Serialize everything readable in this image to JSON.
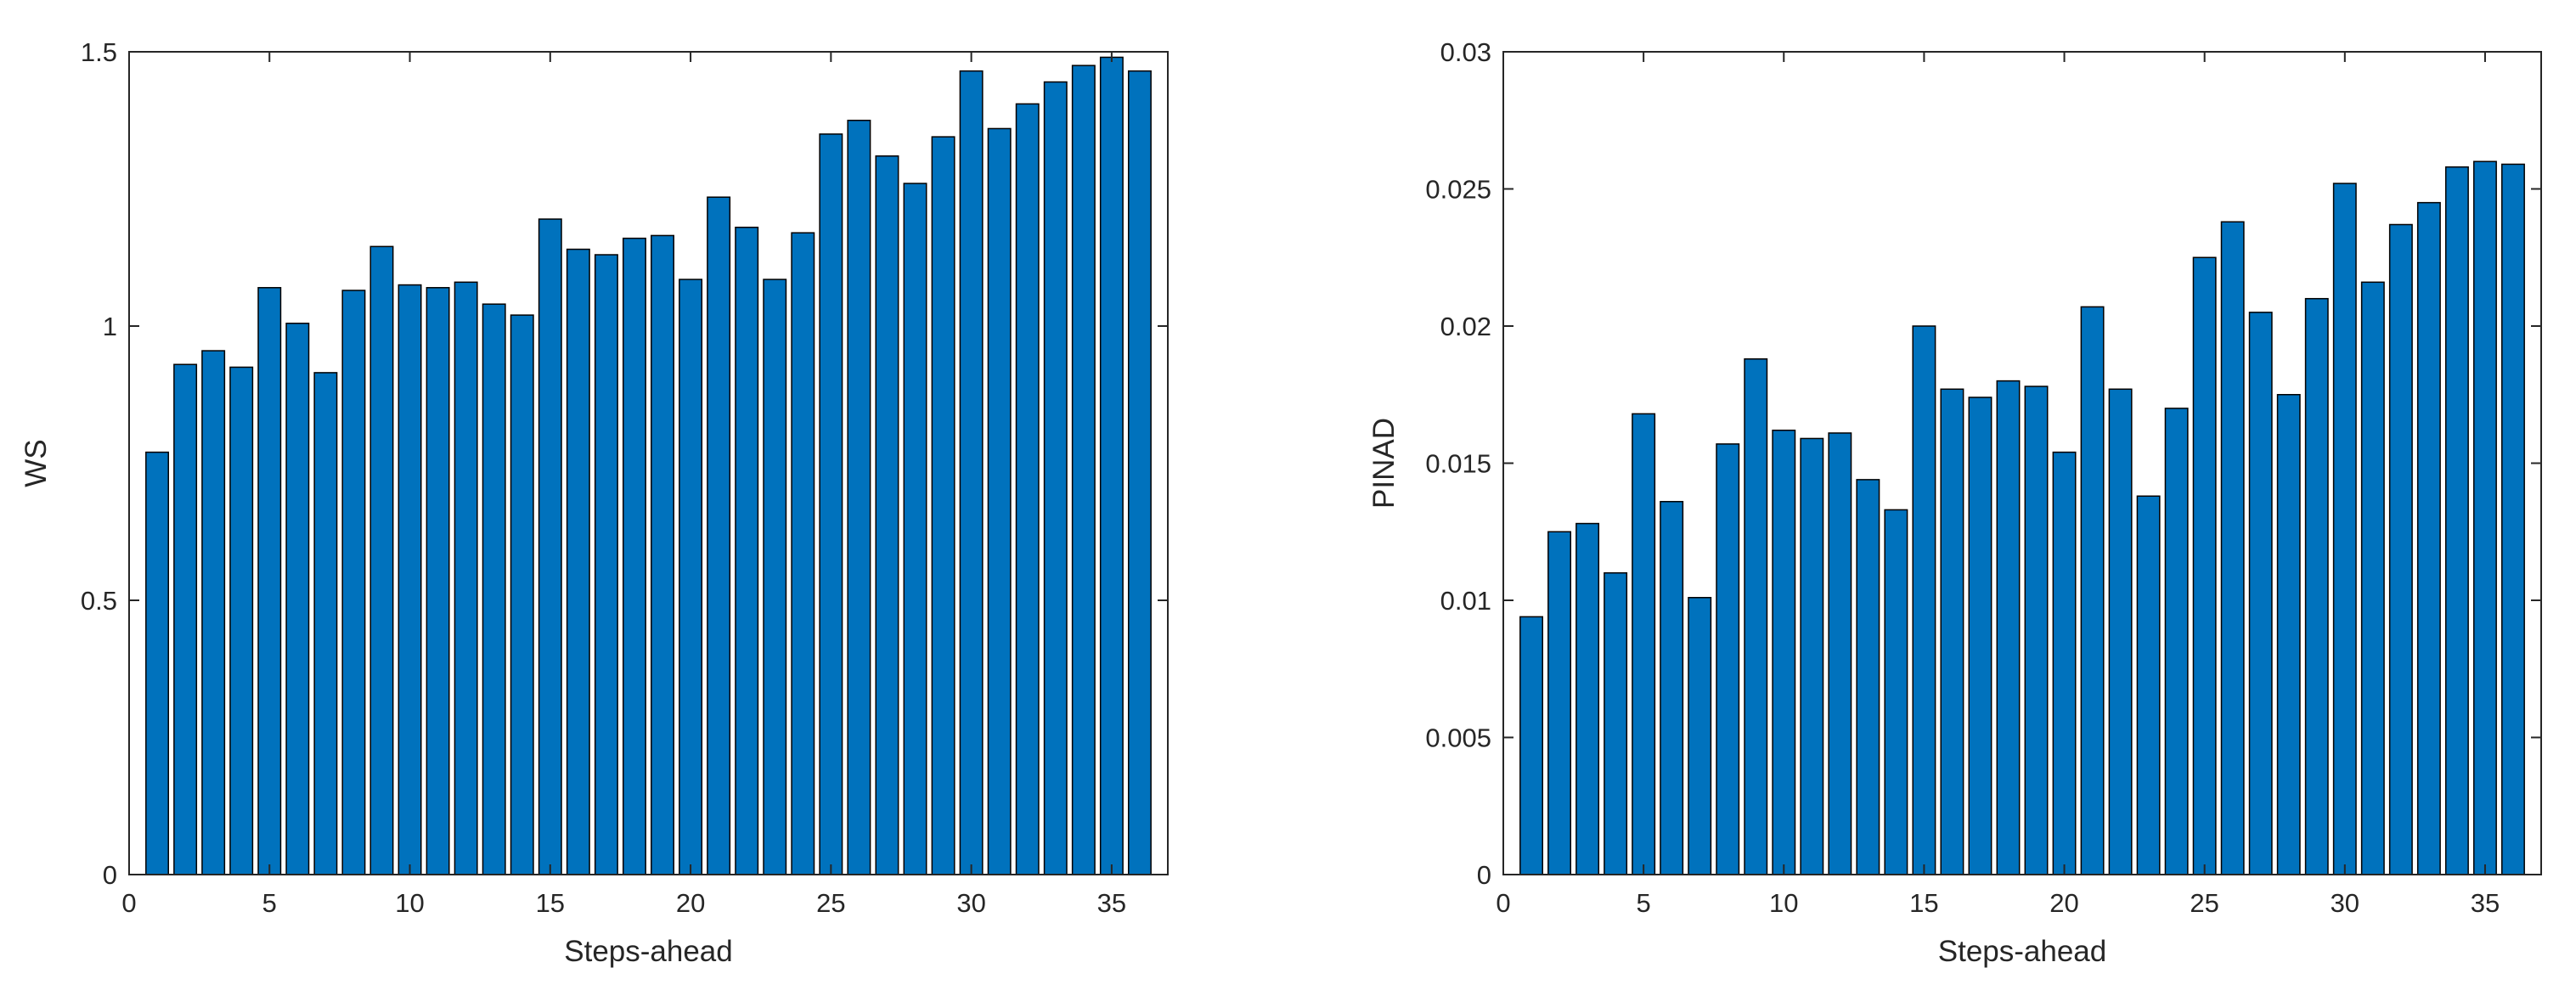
{
  "figure": {
    "bar_color": "#0072BD",
    "edge_color": "#000000",
    "axis_color": "#262626"
  },
  "chart_data": [
    {
      "type": "bar",
      "xlabel": "Steps-ahead",
      "ylabel": "WS",
      "xlim": [
        0,
        37
      ],
      "ylim": [
        0,
        1.5
      ],
      "xticks": [
        0,
        5,
        10,
        15,
        20,
        25,
        30,
        35
      ],
      "yticks": [
        0,
        0.5,
        1,
        1.5
      ],
      "ytick_labels": [
        "0",
        "0.5",
        "1",
        "1.5"
      ],
      "grid": false,
      "categories": [
        1,
        2,
        3,
        4,
        5,
        6,
        7,
        8,
        9,
        10,
        11,
        12,
        13,
        14,
        15,
        16,
        17,
        18,
        19,
        20,
        21,
        22,
        23,
        24,
        25,
        26,
        27,
        28,
        29,
        30,
        31,
        32,
        33,
        34,
        35,
        36
      ],
      "values": [
        0.77,
        0.93,
        0.955,
        0.925,
        1.07,
        1.005,
        0.915,
        1.065,
        1.145,
        1.075,
        1.07,
        1.08,
        1.04,
        1.02,
        1.195,
        1.14,
        1.13,
        1.16,
        1.165,
        1.085,
        1.235,
        1.18,
        1.085,
        1.17,
        1.35,
        1.375,
        1.31,
        1.26,
        1.345,
        1.465,
        1.36,
        1.405,
        1.445,
        1.475,
        1.49,
        1.465
      ]
    },
    {
      "type": "bar",
      "xlabel": "Steps-ahead",
      "ylabel": "PINAD",
      "xlim": [
        0,
        37
      ],
      "ylim": [
        0,
        0.03
      ],
      "xticks": [
        0,
        5,
        10,
        15,
        20,
        25,
        30,
        35
      ],
      "yticks": [
        0,
        0.005,
        0.01,
        0.015,
        0.02,
        0.025,
        0.03
      ],
      "ytick_labels": [
        "0",
        "0.005",
        "0.01",
        "0.015",
        "0.02",
        "0.025",
        "0.03"
      ],
      "grid": false,
      "categories": [
        1,
        2,
        3,
        4,
        5,
        6,
        7,
        8,
        9,
        10,
        11,
        12,
        13,
        14,
        15,
        16,
        17,
        18,
        19,
        20,
        21,
        22,
        23,
        24,
        25,
        26,
        27,
        28,
        29,
        30,
        31,
        32,
        33,
        34,
        35,
        36
      ],
      "values": [
        0.0094,
        0.0125,
        0.0128,
        0.011,
        0.0168,
        0.0136,
        0.0101,
        0.0157,
        0.0188,
        0.0162,
        0.0159,
        0.0161,
        0.0144,
        0.0133,
        0.02,
        0.0177,
        0.0174,
        0.018,
        0.0178,
        0.0154,
        0.0207,
        0.0177,
        0.0138,
        0.017,
        0.0225,
        0.0238,
        0.0205,
        0.0175,
        0.021,
        0.0252,
        0.0216,
        0.0237,
        0.0245,
        0.0258,
        0.026,
        0.0259
      ]
    }
  ]
}
